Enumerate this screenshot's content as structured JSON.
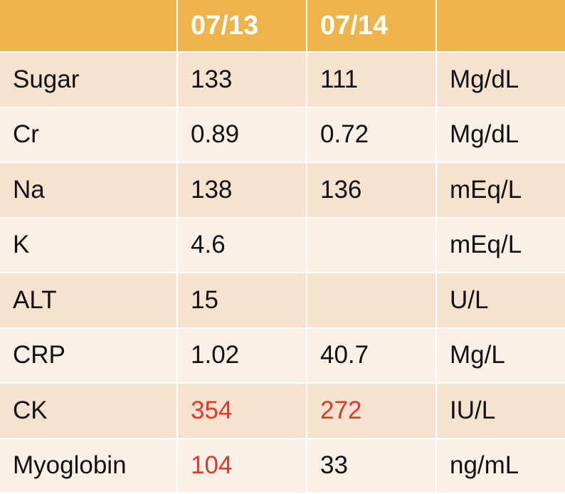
{
  "table": {
    "columns": [
      "07/13",
      "07/14"
    ],
    "flag_color": "#e0382c",
    "rows": [
      {
        "name": "Sugar",
        "values": [
          133,
          111
        ],
        "unit": "Mg/dL",
        "flags": [
          false,
          false
        ]
      },
      {
        "name": "Cr",
        "values": [
          0.89,
          0.72
        ],
        "unit": "Mg/dL",
        "flags": [
          false,
          false
        ]
      },
      {
        "name": "Na",
        "values": [
          138,
          136
        ],
        "unit": "mEq/L",
        "flags": [
          false,
          false
        ]
      },
      {
        "name": "K",
        "values": [
          4.6,
          null
        ],
        "unit": "mEq/L",
        "flags": [
          false,
          false
        ]
      },
      {
        "name": "ALT",
        "values": [
          15,
          null
        ],
        "unit": "U/L",
        "flags": [
          false,
          false
        ]
      },
      {
        "name": "CRP",
        "values": [
          1.02,
          40.7
        ],
        "unit": "Mg/L",
        "flags": [
          false,
          false
        ]
      },
      {
        "name": "CK",
        "values": [
          354,
          272
        ],
        "unit": "IU/L",
        "flags": [
          true,
          true
        ]
      },
      {
        "name": "Myoglobin",
        "values": [
          104,
          33
        ],
        "unit": "ng/mL",
        "flags": [
          true,
          false
        ]
      }
    ]
  }
}
